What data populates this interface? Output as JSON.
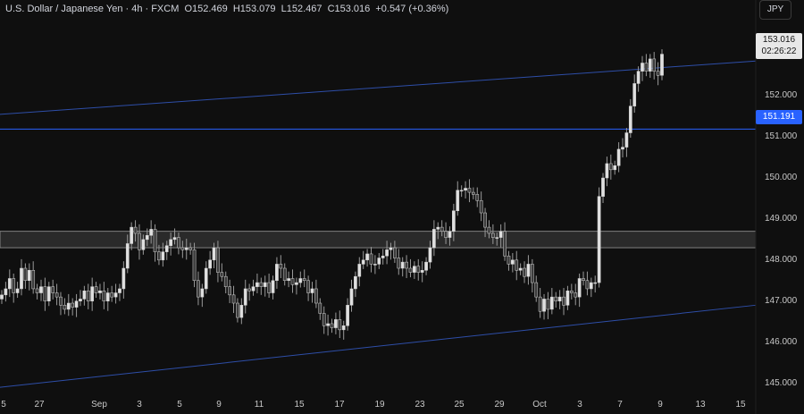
{
  "header": {
    "symbol": "U.S. Dollar / Japanese Yen",
    "interval": "4h",
    "source": "FXCM",
    "open": "O152.469",
    "high": "H153.079",
    "low": "L152.467",
    "close": "C153.016",
    "change": "+0.547 (+0.36%)"
  },
  "currency_button": "JPY",
  "price_badge": {
    "price": "153.016",
    "countdown": "02:26:22"
  },
  "level_badge": "151.191",
  "colors": {
    "background": "#0f0f0f",
    "candle": "#d1d1d1",
    "wick": "#9a9a9a",
    "trendline": "#2e4ea8",
    "level": "#2962ff",
    "zone": "#2a2a2a"
  },
  "chart_data": {
    "type": "candlestick",
    "timeframe": "4h",
    "y_ticks": [
      145.0,
      146.0,
      147.0,
      148.0,
      149.0,
      150.0,
      151.0,
      152.0
    ],
    "y_tick_labels": [
      "145.000",
      "146.000",
      "147.000",
      "148.000",
      "149.000",
      "150.000",
      "151.000",
      "152.000"
    ],
    "ylim": [
      144.75,
      153.9
    ],
    "x_tick_labels": [
      "5",
      "27",
      "Sep",
      "3",
      "5",
      "9",
      "11",
      "15",
      "17",
      "19",
      "23",
      "25",
      "29",
      "Oct",
      "3",
      "7",
      "9",
      "13",
      "15"
    ],
    "horizontal_level": 151.191,
    "resistance_zone": [
      148.3,
      148.7
    ],
    "upper_trendline": {
      "from": 151.55,
      "to": 152.85
    },
    "lower_trendline": {
      "from": 144.9,
      "to": 146.9
    },
    "last_price": 153.016,
    "closes": [
      147.15,
      147.3,
      147.55,
      147.2,
      147.3,
      147.8,
      147.5,
      147.75,
      147.3,
      147.2,
      147.35,
      147.0,
      147.35,
      147.2,
      147.1,
      146.9,
      146.8,
      146.95,
      146.85,
      147.0,
      147.05,
      147.25,
      147.0,
      147.35,
      147.2,
      147.25,
      147.0,
      147.2,
      147.1,
      147.2,
      147.3,
      147.8,
      148.4,
      148.8,
      148.65,
      148.25,
      148.5,
      148.6,
      148.75,
      148.2,
      148.0,
      148.2,
      148.35,
      148.5,
      148.55,
      148.3,
      148.25,
      148.3,
      148.25,
      147.5,
      147.1,
      147.3,
      147.8,
      148.0,
      148.3,
      147.7,
      147.6,
      147.35,
      147.15,
      146.95,
      146.6,
      146.9,
      147.3,
      147.25,
      147.35,
      147.45,
      147.35,
      147.45,
      147.2,
      147.5,
      147.9,
      147.8,
      147.5,
      147.55,
      147.4,
      147.45,
      147.55,
      147.5,
      147.2,
      147.3,
      146.95,
      146.7,
      146.4,
      146.45,
      146.35,
      146.55,
      146.3,
      146.4,
      146.9,
      147.3,
      147.6,
      147.9,
      148.0,
      148.15,
      147.9,
      147.9,
      148.05,
      148.1,
      148.25,
      148.3,
      148.05,
      147.8,
      147.95,
      147.8,
      147.7,
      147.85,
      147.7,
      147.75,
      147.95,
      148.3,
      148.75,
      148.8,
      148.7,
      148.55,
      148.7,
      149.2,
      149.7,
      149.7,
      149.75,
      149.65,
      149.6,
      149.45,
      149.15,
      148.8,
      148.65,
      148.55,
      148.55,
      148.7,
      148.1,
      147.9,
      148.0,
      147.75,
      147.8,
      147.6,
      147.9,
      147.45,
      147.1,
      146.75,
      147.05,
      146.8,
      147.1,
      147.0,
      147.1,
      146.9,
      147.25,
      147.2,
      147.1,
      147.55,
      147.5,
      147.3,
      147.45,
      147.45,
      149.55,
      150.0,
      150.35,
      150.2,
      150.3,
      150.7,
      150.75,
      151.1,
      151.75,
      152.3,
      152.6,
      152.8,
      152.6,
      152.9,
      152.6,
      152.5,
      153.016
    ]
  }
}
